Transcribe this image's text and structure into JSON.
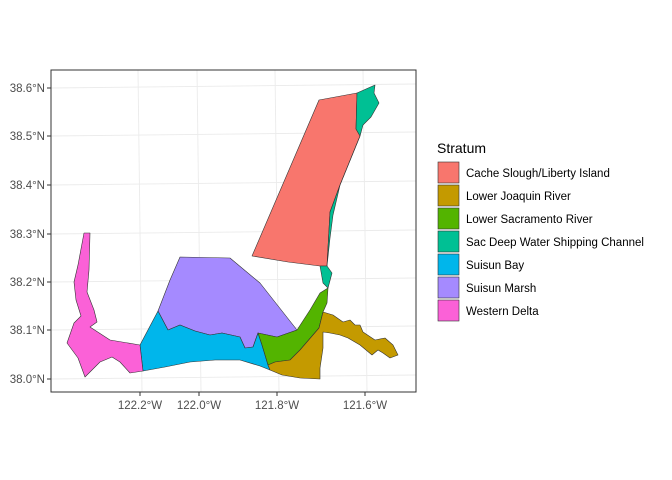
{
  "chart_data": {
    "type": "map",
    "x_ticks": [
      "122.2°W",
      "122.0°W",
      "121.8°W",
      "121.6°W"
    ],
    "y_ticks": [
      "38.0°N",
      "38.1°N",
      "38.2°N",
      "38.3°N",
      "38.4°N",
      "38.5°N",
      "38.6°N"
    ],
    "legend": {
      "title": "Stratum",
      "placement": "right",
      "entries": [
        {
          "label": "Cache Slough/Liberty Island",
          "color": "#F8766D"
        },
        {
          "label": "Lower Joaquin River",
          "color": "#C49A00"
        },
        {
          "label": "Lower Sacramento River",
          "color": "#53B400"
        },
        {
          "label": "Sac Deep Water Shipping Channel",
          "color": "#00C094"
        },
        {
          "label": "Suisun Bay",
          "color": "#00B6EB"
        },
        {
          "label": "Suisun Marsh",
          "color": "#A58AFF"
        },
        {
          "label": "Western Delta",
          "color": "#FB61D7"
        }
      ]
    },
    "grid": true,
    "panel_border": true
  }
}
